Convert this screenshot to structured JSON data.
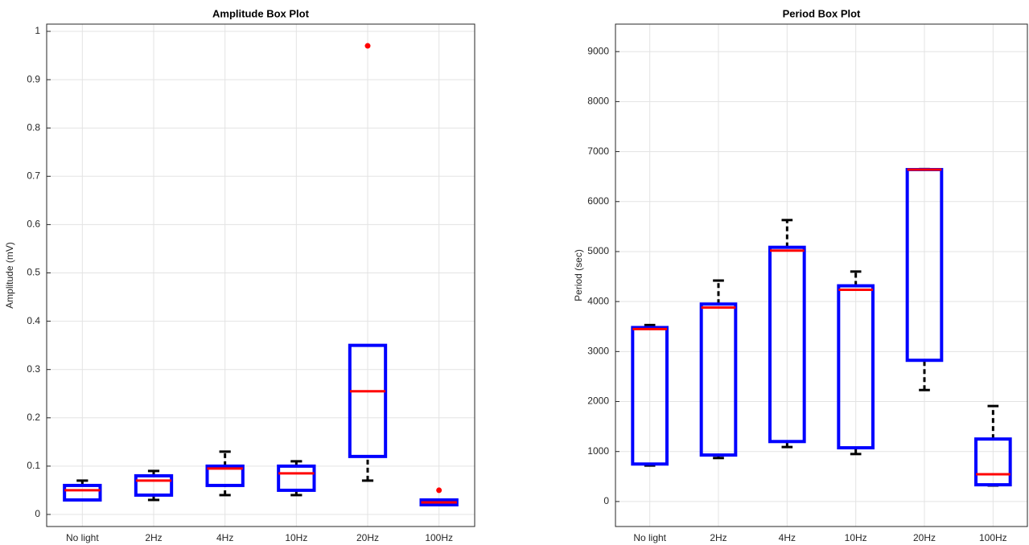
{
  "chart_data": [
    {
      "type": "box",
      "title": "Amplitude Box Plot",
      "ylabel": "Amplitude (mV)",
      "categories": [
        "No light",
        "2Hz",
        "4Hz",
        "10Hz",
        "20Hz",
        "100Hz"
      ],
      "boxes": [
        {
          "min": 0.03,
          "q1": 0.03,
          "median": 0.05,
          "q3": 0.06,
          "max": 0.07,
          "outliers": []
        },
        {
          "min": 0.03,
          "q1": 0.04,
          "median": 0.07,
          "q3": 0.08,
          "max": 0.09,
          "outliers": []
        },
        {
          "min": 0.04,
          "q1": 0.06,
          "median": 0.095,
          "q3": 0.1,
          "max": 0.13,
          "outliers": []
        },
        {
          "min": 0.04,
          "q1": 0.05,
          "median": 0.085,
          "q3": 0.1,
          "max": 0.11,
          "outliers": []
        },
        {
          "min": 0.07,
          "q1": 0.12,
          "median": 0.255,
          "q3": 0.35,
          "max": 0.35,
          "outliers": [
            0.97
          ]
        },
        {
          "min": 0.02,
          "q1": 0.02,
          "median": 0.025,
          "q3": 0.03,
          "max": 0.03,
          "outliers": [
            0.05
          ]
        }
      ],
      "ylim": [
        -0.025,
        1.015
      ],
      "yticks": [
        0,
        0.1,
        0.2,
        0.3,
        0.4,
        0.5,
        0.6,
        0.7,
        0.8,
        0.9,
        1
      ],
      "grid": true,
      "box_color": "#0000ff",
      "median_color": "#ff0000",
      "whisker_color": "#000000",
      "outlier_color": "#ff0000"
    },
    {
      "type": "box",
      "title": "Period Box Plot",
      "ylabel": "Period (sec)",
      "categories": [
        "No light",
        "2Hz",
        "4Hz",
        "10Hz",
        "20Hz",
        "100Hz"
      ],
      "boxes": [
        {
          "min": 720,
          "q1": 750,
          "median": 3450,
          "q3": 3480,
          "max": 3530,
          "outliers": []
        },
        {
          "min": 870,
          "q1": 930,
          "median": 3880,
          "q3": 3950,
          "max": 4420,
          "outliers": []
        },
        {
          "min": 1090,
          "q1": 1200,
          "median": 5020,
          "q3": 5085,
          "max": 5630,
          "outliers": []
        },
        {
          "min": 950,
          "q1": 1075,
          "median": 4235,
          "q3": 4315,
          "max": 4600,
          "outliers": []
        },
        {
          "min": 2230,
          "q1": 2825,
          "median": 6640,
          "q3": 6640,
          "max": 6650,
          "outliers": []
        },
        {
          "min": 320,
          "q1": 335,
          "median": 545,
          "q3": 1250,
          "max": 1910,
          "outliers": []
        }
      ],
      "ylim": [
        -500,
        9550
      ],
      "yticks": [
        0,
        1000,
        2000,
        3000,
        4000,
        5000,
        6000,
        7000,
        8000,
        9000
      ],
      "grid": true,
      "box_color": "#0000ff",
      "median_color": "#ff0000",
      "whisker_color": "#000000",
      "outlier_color": "#ff0000"
    }
  ]
}
